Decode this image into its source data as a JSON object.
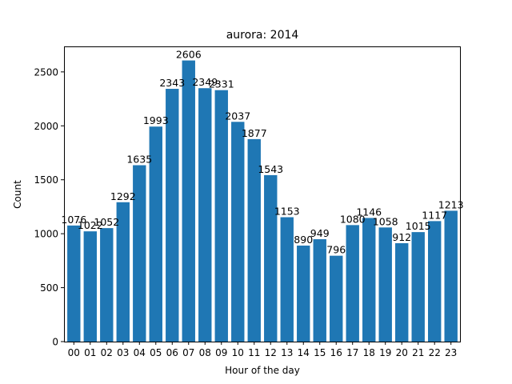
{
  "chart_data": {
    "type": "bar",
    "title": "aurora: 2014",
    "xlabel": "Hour of the day",
    "ylabel": "Count",
    "categories": [
      "00",
      "01",
      "02",
      "03",
      "04",
      "05",
      "06",
      "07",
      "08",
      "09",
      "10",
      "11",
      "12",
      "13",
      "14",
      "15",
      "16",
      "17",
      "18",
      "19",
      "20",
      "21",
      "22",
      "23"
    ],
    "values": [
      1076,
      1022,
      1052,
      1292,
      1635,
      1993,
      2343,
      2606,
      2349,
      2331,
      2037,
      1877,
      1543,
      1153,
      890,
      949,
      796,
      1080,
      1146,
      1058,
      912,
      1015,
      1117,
      1213
    ],
    "ylim": [
      0,
      2736.3
    ],
    "yticks": [
      0,
      500,
      1000,
      1500,
      2000,
      2500
    ],
    "bar_color": "#1f77b4",
    "grid": false,
    "legend": false
  }
}
